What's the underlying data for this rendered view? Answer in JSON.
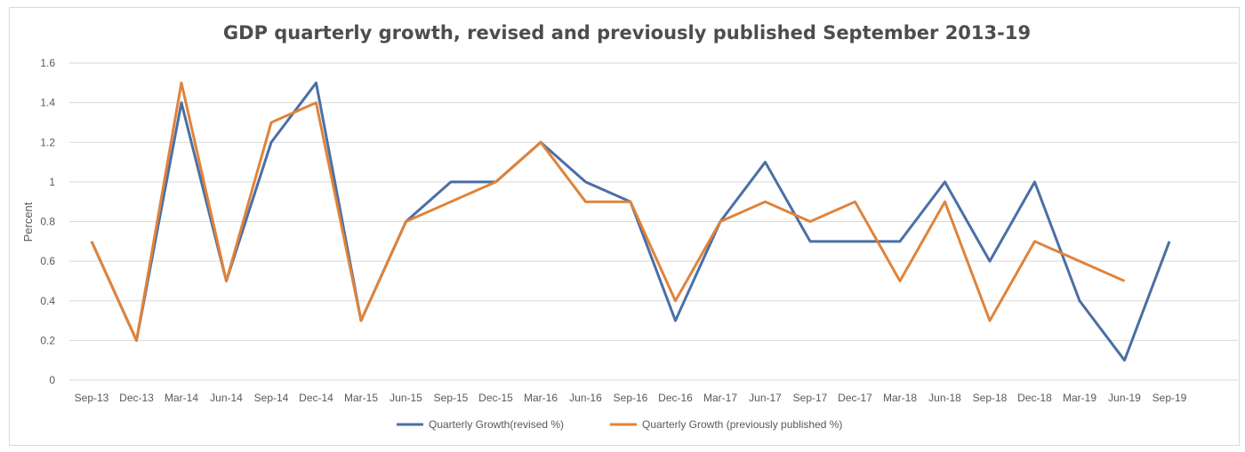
{
  "chart_data": {
    "type": "line",
    "title": "GDP quarterly growth, revised and previously published September 2013-19",
    "xlabel": "",
    "ylabel": "Percent",
    "ylim": [
      0,
      1.6
    ],
    "yticks": [
      "0",
      "0.2",
      "0.4",
      "0.6",
      "0.8",
      "1",
      "1.2",
      "1.4",
      "1.6"
    ],
    "grid": true,
    "legend_position": "bottom",
    "categories": [
      "Sep-13",
      "Dec-13",
      "Mar-14",
      "Jun-14",
      "Sep-14",
      "Dec-14",
      "Mar-15",
      "Jun-15",
      "Sep-15",
      "Dec-15",
      "Mar-16",
      "Jun-16",
      "Sep-16",
      "Dec-16",
      "Mar-17",
      "Jun-17",
      "Sep-17",
      "Dec-17",
      "Mar-18",
      "Jun-18",
      "Sep-18",
      "Dec-18",
      "Mar-19",
      "Jun-19",
      "Sep-19"
    ],
    "series": [
      {
        "name": "Quarterly Growth(revised %)",
        "color": "#4a6fa5",
        "values": [
          0.7,
          0.2,
          1.4,
          0.5,
          1.2,
          1.5,
          0.3,
          0.8,
          1.0,
          1.0,
          1.2,
          1.0,
          0.9,
          0.3,
          0.8,
          1.1,
          0.7,
          0.7,
          0.7,
          1.0,
          0.6,
          1.0,
          0.4,
          0.1,
          0.7
        ]
      },
      {
        "name": "Quarterly Growth (previously published %)",
        "color": "#e0833a",
        "values": [
          0.7,
          0.2,
          1.5,
          0.5,
          1.3,
          1.4,
          0.3,
          0.8,
          0.9,
          1.0,
          1.2,
          0.9,
          0.9,
          0.4,
          0.8,
          0.9,
          0.8,
          0.9,
          0.5,
          0.9,
          0.3,
          0.7,
          0.6,
          0.5,
          null
        ]
      }
    ]
  }
}
